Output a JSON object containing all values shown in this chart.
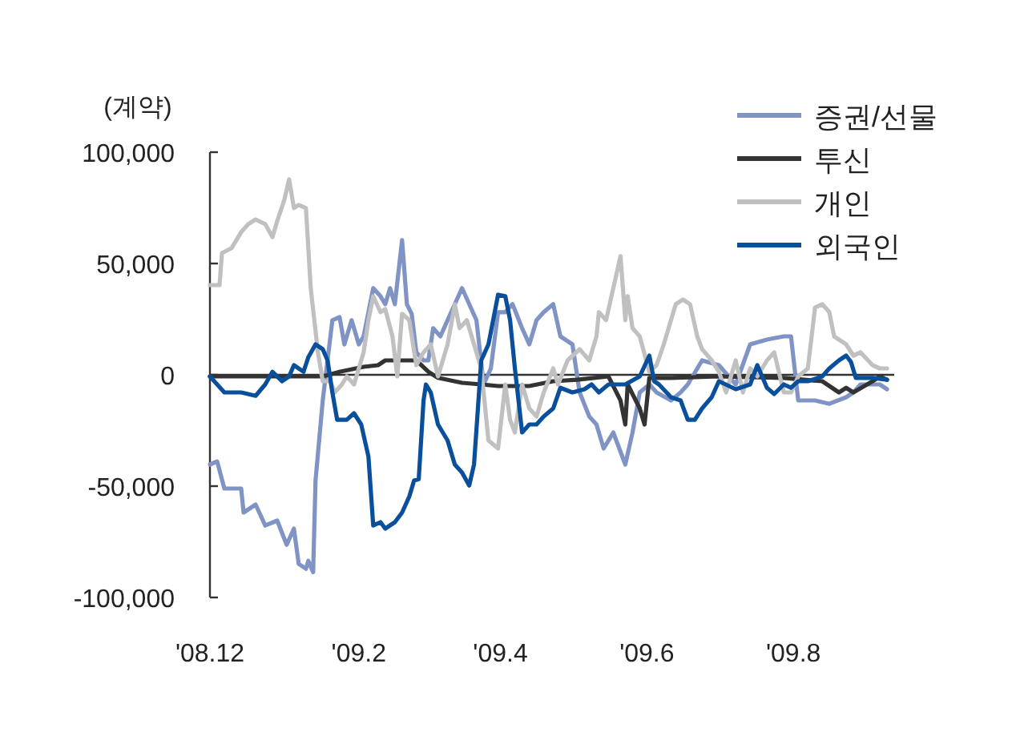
{
  "chart_data": {
    "type": "line",
    "ylabel": "(계약)",
    "legend": "top right",
    "grid": false,
    "marker": "none",
    "line_style": "solid",
    "ref_lines": [
      {
        "axis": "y",
        "value": 0,
        "color": "#333333",
        "line_style": "solid"
      }
    ],
    "xlim": [
      "2008-12-01",
      "2009-09-12"
    ],
    "ylim": [
      -100000,
      100000
    ],
    "xticks": [
      {
        "value": "2008-12",
        "label": "'08.12"
      },
      {
        "value": "2009-02",
        "label": "'09.2"
      },
      {
        "value": "2009-04",
        "label": "'09.4"
      },
      {
        "value": "2009-06",
        "label": "'09.6"
      },
      {
        "value": "2009-08",
        "label": "'09.8"
      }
    ],
    "yticks": [
      {
        "value": -100000,
        "label": "-100,000"
      },
      {
        "value": -50000,
        "label": "-50,000"
      },
      {
        "value": 0,
        "label": "0"
      },
      {
        "value": 50000,
        "label": "50,000"
      },
      {
        "value": 100000,
        "label": "100,000"
      }
    ],
    "series": [
      {
        "name": "증권/선물",
        "color": "#7f93c4",
        "x": [
          "2008-12-01",
          "2008-12-04",
          "2008-12-07",
          "2008-12-14",
          "2008-12-15",
          "2008-12-20",
          "2008-12-24",
          "2008-12-29",
          "2009-01-02",
          "2009-01-05",
          "2009-01-07",
          "2009-01-10",
          "2009-01-11",
          "2009-01-13",
          "2009-01-14",
          "2009-01-17",
          "2009-01-21",
          "2009-01-24",
          "2009-01-26",
          "2009-01-29",
          "2009-02-01",
          "2009-02-03",
          "2009-02-07",
          "2009-02-10",
          "2009-02-12",
          "2009-02-14",
          "2009-02-16",
          "2009-02-19",
          "2009-02-21",
          "2009-02-23",
          "2009-02-25",
          "2009-02-28",
          "2009-03-02",
          "2009-03-04",
          "2009-03-07",
          "2009-03-10",
          "2009-03-13",
          "2009-03-16",
          "2009-03-19",
          "2009-03-22",
          "2009-03-25",
          "2009-03-28",
          "2009-03-31",
          "2009-04-03",
          "2009-04-06",
          "2009-04-10",
          "2009-04-13",
          "2009-04-16",
          "2009-04-19",
          "2009-04-23",
          "2009-04-26",
          "2009-05-01",
          "2009-05-04",
          "2009-05-08",
          "2009-05-11",
          "2009-05-14",
          "2009-05-18",
          "2009-05-23",
          "2009-05-26",
          "2009-05-29",
          "2009-06-02",
          "2009-06-05",
          "2009-06-11",
          "2009-06-15",
          "2009-06-18",
          "2009-06-24",
          "2009-07-01",
          "2009-07-08",
          "2009-07-14",
          "2009-07-21",
          "2009-07-28",
          "2009-07-31",
          "2009-08-03",
          "2009-08-10",
          "2009-08-16",
          "2009-08-23",
          "2009-08-26",
          "2009-08-29",
          "2009-09-06",
          "2009-09-09"
        ],
        "values": [
          -40300,
          -38900,
          -51100,
          -51100,
          -61900,
          -58300,
          -67700,
          -65500,
          -76300,
          -69100,
          -85000,
          -87100,
          -83500,
          -88600,
          -47500,
          -11500,
          24500,
          25900,
          13700,
          24500,
          13700,
          17300,
          38900,
          35300,
          31700,
          38900,
          31700,
          60500,
          31700,
          27400,
          10100,
          6500,
          6500,
          20900,
          17300,
          24500,
          31700,
          38900,
          31700,
          24500,
          -4300,
          2900,
          28100,
          28100,
          31700,
          20900,
          13700,
          24500,
          28100,
          31700,
          17300,
          13700,
          -7900,
          -18700,
          -22300,
          -33100,
          -25900,
          -40300,
          -25900,
          -7900,
          -4300,
          -7900,
          -11500,
          -7900,
          -4300,
          6500,
          4300,
          -4300,
          13700,
          15800,
          17300,
          17300,
          -11500,
          -11500,
          -13000,
          -10100,
          -7900,
          -4300,
          -4300,
          -6500
        ]
      },
      {
        "name": "투신",
        "color": "#333333",
        "x": [
          "2008-12-01",
          "2009-01-17",
          "2009-01-24",
          "2009-02-03",
          "2009-02-09",
          "2009-02-12",
          "2009-02-25",
          "2009-03-02",
          "2009-03-06",
          "2009-03-16",
          "2009-03-24",
          "2009-03-31",
          "2009-04-13",
          "2009-04-23",
          "2009-05-03",
          "2009-05-16",
          "2009-05-21",
          "2009-05-23",
          "2009-05-24",
          "2009-05-29",
          "2009-05-31",
          "2009-06-02",
          "2009-06-11",
          "2009-07-01",
          "2009-07-28",
          "2009-08-13",
          "2009-08-20",
          "2009-08-23",
          "2009-08-26",
          "2009-09-03",
          "2009-09-06",
          "2009-09-09"
        ],
        "values": [
          -700,
          -700,
          1400,
          3600,
          4300,
          6500,
          6500,
          1400,
          -1400,
          -3600,
          -4300,
          -5000,
          -5000,
          -2900,
          -2200,
          -700,
          -11500,
          -22300,
          -4300,
          -15100,
          -22300,
          -1400,
          -1400,
          -700,
          -1400,
          -2900,
          -7900,
          -5800,
          -7900,
          -2900,
          -700,
          -2200
        ]
      },
      {
        "name": "개인",
        "color": "#c0c0c0",
        "x": [
          "2008-12-01",
          "2008-12-05",
          "2008-12-06",
          "2008-12-10",
          "2008-12-14",
          "2008-12-17",
          "2008-12-20",
          "2008-12-24",
          "2008-12-27",
          "2008-12-29",
          "2009-01-01",
          "2009-01-03",
          "2009-01-05",
          "2009-01-07",
          "2009-01-10",
          "2009-01-12",
          "2009-01-15",
          "2009-01-17",
          "2009-01-20",
          "2009-01-22",
          "2009-01-25",
          "2009-01-27",
          "2009-01-30",
          "2009-02-03",
          "2009-02-05",
          "2009-02-07",
          "2009-02-10",
          "2009-02-12",
          "2009-02-15",
          "2009-02-17",
          "2009-02-19",
          "2009-02-22",
          "2009-02-25",
          "2009-02-28",
          "2009-03-03",
          "2009-03-06",
          "2009-03-10",
          "2009-03-13",
          "2009-03-15",
          "2009-03-18",
          "2009-03-21",
          "2009-03-24",
          "2009-03-27",
          "2009-03-31",
          "2009-04-03",
          "2009-04-05",
          "2009-04-07",
          "2009-04-10",
          "2009-04-13",
          "2009-04-16",
          "2009-04-19",
          "2009-04-23",
          "2009-04-25",
          "2009-04-29",
          "2009-05-04",
          "2009-05-08",
          "2009-05-11",
          "2009-05-12",
          "2009-05-15",
          "2009-05-18",
          "2009-05-21",
          "2009-05-23",
          "2009-05-24",
          "2009-05-26",
          "2009-05-29",
          "2009-06-02",
          "2009-06-05",
          "2009-06-08",
          "2009-06-11",
          "2009-06-13",
          "2009-06-16",
          "2009-06-19",
          "2009-06-22",
          "2009-06-24",
          "2009-06-28",
          "2009-07-01",
          "2009-07-04",
          "2009-07-08",
          "2009-07-11",
          "2009-07-14",
          "2009-07-17",
          "2009-07-21",
          "2009-07-24",
          "2009-07-28",
          "2009-07-31",
          "2009-08-03",
          "2009-08-07",
          "2009-08-10",
          "2009-08-13",
          "2009-08-16",
          "2009-08-18",
          "2009-08-23",
          "2009-08-26",
          "2009-08-29",
          "2009-09-03",
          "2009-09-06",
          "2009-09-09"
        ],
        "values": [
          40300,
          40300,
          54700,
          56900,
          64100,
          67700,
          69800,
          67700,
          61900,
          69100,
          78500,
          87800,
          74900,
          76300,
          74900,
          38900,
          10100,
          -2900,
          -2900,
          -7900,
          -4300,
          -700,
          -4300,
          10100,
          24500,
          35300,
          28100,
          29500,
          17300,
          -700,
          27400,
          24500,
          4300,
          10100,
          13700,
          -700,
          13700,
          31700,
          20900,
          24500,
          13700,
          2900,
          -29500,
          -33100,
          -4300,
          -20200,
          -25900,
          -4300,
          -15100,
          -18700,
          -7900,
          2900,
          -4300,
          6500,
          11500,
          6500,
          17300,
          28100,
          24500,
          38900,
          53300,
          24500,
          35300,
          20900,
          17300,
          1400,
          4300,
          13700,
          24500,
          31700,
          33800,
          31700,
          17300,
          11500,
          6500,
          1400,
          -7900,
          6500,
          -7900,
          2900,
          -700,
          6500,
          10100,
          -7900,
          -7900,
          -700,
          2900,
          30200,
          31700,
          28100,
          17300,
          13700,
          8600,
          10100,
          4300,
          2900,
          2900
        ]
      },
      {
        "name": "외국인",
        "color": "#0a4f9b",
        "x": [
          "2008-12-01",
          "2008-12-04",
          "2008-12-07",
          "2008-12-14",
          "2008-12-20",
          "2008-12-24",
          "2008-12-27",
          "2008-12-31",
          "2009-01-03",
          "2009-01-05",
          "2009-01-09",
          "2009-01-11",
          "2009-01-14",
          "2009-01-17",
          "2009-01-19",
          "2009-01-21",
          "2009-01-23",
          "2009-01-27",
          "2009-01-30",
          "2009-02-02",
          "2009-02-05",
          "2009-02-07",
          "2009-02-10",
          "2009-02-12",
          "2009-02-16",
          "2009-02-19",
          "2009-02-22",
          "2009-02-24",
          "2009-02-26",
          "2009-02-28",
          "2009-03-01",
          "2009-03-03",
          "2009-03-06",
          "2009-03-10",
          "2009-03-13",
          "2009-03-16",
          "2009-03-19",
          "2009-03-21",
          "2009-03-24",
          "2009-03-27",
          "2009-03-31",
          "2009-04-03",
          "2009-04-05",
          "2009-04-07",
          "2009-04-10",
          "2009-04-13",
          "2009-04-16",
          "2009-04-19",
          "2009-04-23",
          "2009-04-26",
          "2009-05-01",
          "2009-05-06",
          "2009-05-09",
          "2009-05-12",
          "2009-05-16",
          "2009-05-23",
          "2009-05-29",
          "2009-06-02",
          "2009-06-04",
          "2009-06-06",
          "2009-06-11",
          "2009-06-15",
          "2009-06-18",
          "2009-06-21",
          "2009-06-24",
          "2009-06-28",
          "2009-07-01",
          "2009-07-08",
          "2009-07-14",
          "2009-07-17",
          "2009-07-21",
          "2009-07-24",
          "2009-07-28",
          "2009-07-31",
          "2009-08-03",
          "2009-08-07",
          "2009-08-13",
          "2009-08-16",
          "2009-08-20",
          "2009-08-23",
          "2009-08-25",
          "2009-08-27",
          "2009-09-03",
          "2009-09-09"
        ],
        "values": [
          -700,
          -4300,
          -7900,
          -7900,
          -9400,
          -4300,
          1400,
          -2900,
          -700,
          4300,
          1400,
          7900,
          13700,
          11500,
          6500,
          -7900,
          -20200,
          -20200,
          -17300,
          -22300,
          -36700,
          -67700,
          -66200,
          -69100,
          -66200,
          -61900,
          -54700,
          -47500,
          -46800,
          -11500,
          -4300,
          -7900,
          -22300,
          -29500,
          -40300,
          -43900,
          -49700,
          -40300,
          6500,
          13700,
          36000,
          35300,
          24500,
          2900,
          -25900,
          -22300,
          -22300,
          -18700,
          -15100,
          -5800,
          -7900,
          -6500,
          -4300,
          -7900,
          -4300,
          -4300,
          -700,
          8600,
          -2900,
          -4300,
          -10100,
          -11500,
          -20200,
          -20200,
          -15100,
          -10100,
          -2900,
          -6500,
          -4300,
          4300,
          -5800,
          -8600,
          -4300,
          -5800,
          -2900,
          -2900,
          -700,
          2900,
          6500,
          8600,
          5800,
          -1400,
          -1400,
          -2200
        ]
      }
    ]
  }
}
